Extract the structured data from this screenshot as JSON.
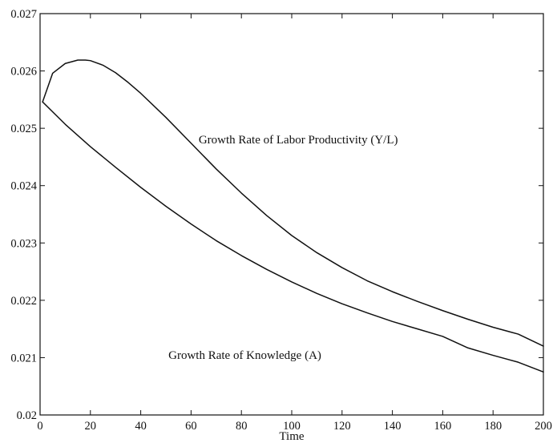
{
  "chart_data": {
    "type": "line",
    "title": "",
    "xlabel": "Time",
    "ylabel": "",
    "xlim": [
      0,
      200
    ],
    "ylim": [
      0.02,
      0.027
    ],
    "grid": false,
    "legend": "none",
    "x_ticks": [
      0,
      20,
      40,
      60,
      80,
      100,
      120,
      140,
      160,
      180,
      200
    ],
    "x_tick_labels": [
      "0",
      "20",
      "40",
      "60",
      "80",
      "100",
      "120",
      "140",
      "160",
      "180",
      "200"
    ],
    "y_ticks": [
      0.02,
      0.021,
      0.022,
      0.023,
      0.024,
      0.025,
      0.026,
      0.027
    ],
    "y_tick_labels": [
      "0.02",
      "0.021",
      "0.022",
      "0.023",
      "0.024",
      "0.025",
      "0.026",
      "0.027"
    ],
    "series": [
      {
        "x": [
          1,
          5,
          10,
          15,
          18,
          20,
          25,
          30,
          35,
          40,
          50,
          60,
          70,
          80,
          90,
          100,
          110,
          120,
          130,
          140,
          150,
          160,
          170,
          180,
          190,
          200
        ],
        "y": [
          0.02546,
          0.02596,
          0.02613,
          0.02619,
          0.02619,
          0.02618,
          0.0261,
          0.02597,
          0.0258,
          0.02561,
          0.02519,
          0.02474,
          0.02429,
          0.02387,
          0.02348,
          0.02313,
          0.02283,
          0.02257,
          0.02234,
          0.02215,
          0.02198,
          0.02182,
          0.02167,
          0.02153,
          0.02141,
          0.0212
        ]
      },
      {
        "x": [
          1,
          10,
          20,
          30,
          40,
          50,
          60,
          70,
          80,
          90,
          100,
          110,
          120,
          130,
          140,
          150,
          160,
          170,
          180,
          190,
          200
        ],
        "y": [
          0.02546,
          0.02507,
          0.02468,
          0.02432,
          0.02397,
          0.02364,
          0.02333,
          0.02304,
          0.02278,
          0.02254,
          0.02232,
          0.02212,
          0.02194,
          0.02178,
          0.02163,
          0.0215,
          0.02137,
          0.02117,
          0.02104,
          0.02092,
          0.02075
        ]
      }
    ],
    "annotations": [
      {
        "text": "Growth Rate of Labor Productivity (Y/L)",
        "x": 63,
        "y": 0.02474
      },
      {
        "text": "Growth Rate of Knowledge (A)",
        "x": 51,
        "y": 0.02098
      }
    ]
  }
}
